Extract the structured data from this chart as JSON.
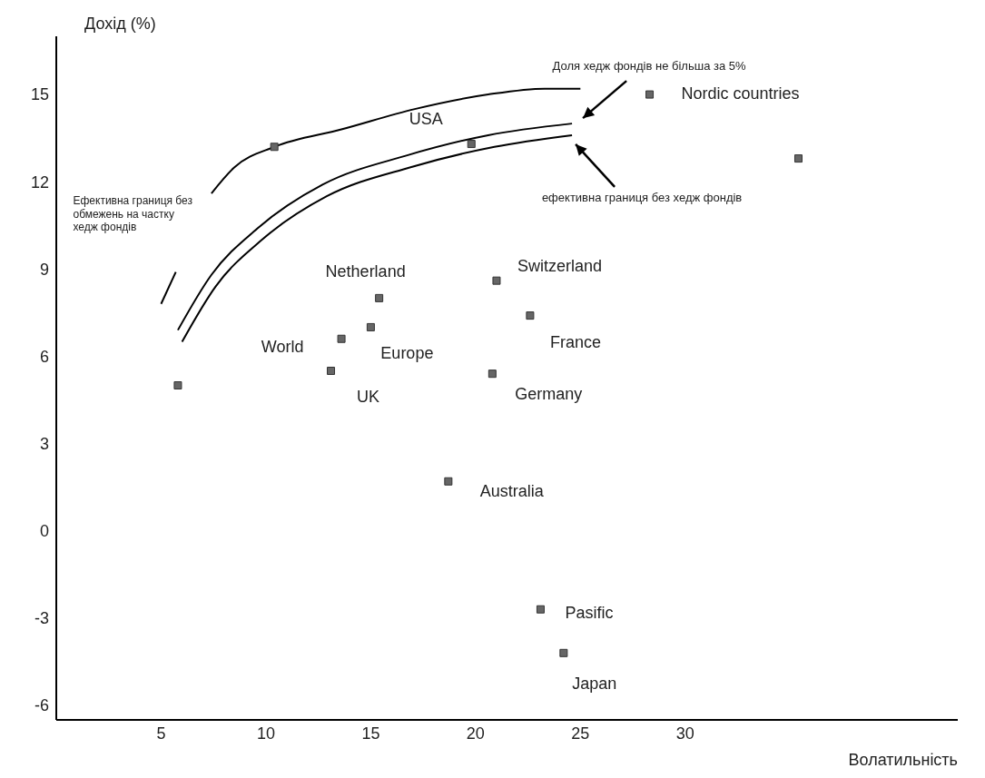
{
  "chart_data": {
    "type": "scatter",
    "xlabel": "Волатильність",
    "ylabel": "Дохід (%)",
    "xlim": [
      0,
      43
    ],
    "xticks": [
      5,
      10,
      15,
      20,
      25,
      30
    ],
    "ylim": [
      -6.5,
      17
    ],
    "yticks": [
      -6,
      -3,
      0,
      3,
      6,
      9,
      12,
      15
    ],
    "grid": false,
    "legend": false,
    "series": [
      {
        "marker": "square",
        "color": "#666666",
        "x": [
          10.4,
          19.8,
          28.3,
          35.4,
          21.0,
          22.6,
          20.8,
          18.7,
          15.4,
          15.0,
          13.6,
          13.1,
          5.8,
          23.1,
          24.2
        ],
        "values": [
          13.2,
          13.3,
          15.0,
          12.8,
          8.6,
          7.4,
          5.4,
          1.7,
          8.0,
          7.0,
          6.6,
          5.5,
          5.0,
          -2.7,
          -4.2
        ]
      },
      {
        "type": "line",
        "color": "#000000",
        "x": [
          7.4,
          8.5,
          10.4,
          13.6,
          17.1,
          20.6,
          23.3,
          25.0
        ],
        "values": [
          11.6,
          12.5,
          13.2,
          13.8,
          14.5,
          15.0,
          15.2,
          15.2
        ]
      },
      {
        "type": "line",
        "color": "#000000",
        "x": [
          5.0,
          5.7
        ],
        "values": [
          7.8,
          8.9
        ]
      },
      {
        "type": "line",
        "color": "#000000",
        "x": [
          5.8,
          7.4,
          9.6,
          12.7,
          16.7,
          20.6,
          24.6
        ],
        "values": [
          6.9,
          8.8,
          10.4,
          11.9,
          12.9,
          13.6,
          14.0
        ]
      },
      {
        "type": "line",
        "color": "#000000",
        "x": [
          6.0,
          7.6,
          9.8,
          12.9,
          16.9,
          20.9,
          24.6
        ],
        "values": [
          6.5,
          8.4,
          10.0,
          11.5,
          12.5,
          13.2,
          13.6
        ]
      }
    ],
    "annotations": [
      "Доля хедж фондів не більша за 5%",
      "ефективна границя без хедж фондів",
      "Ефективна границя без обмежень на частку хедж фондів",
      {
        "text": "USA",
        "x": 19.8,
        "y": 13.3
      },
      {
        "text": "Nordic countries",
        "x": 28.3,
        "y": 15.0
      },
      {
        "text": "Switzerland",
        "x": 21.0,
        "y": 8.6
      },
      {
        "text": "France",
        "x": 22.6,
        "y": 7.4
      },
      {
        "text": "Germany",
        "x": 20.8,
        "y": 5.4
      },
      {
        "text": "Australia",
        "x": 18.7,
        "y": 1.7
      },
      {
        "text": "Netherland",
        "x": 15.4,
        "y": 8.0
      },
      {
        "text": "Europe",
        "x": 15.0,
        "y": 7.0
      },
      {
        "text": "World",
        "x": 13.6,
        "y": 6.6
      },
      {
        "text": "UK",
        "x": 13.1,
        "y": 5.5
      },
      {
        "text": "Pasific",
        "x": 23.1,
        "y": -2.7
      },
      {
        "text": "Japan",
        "x": 24.2,
        "y": -4.2
      }
    ]
  }
}
